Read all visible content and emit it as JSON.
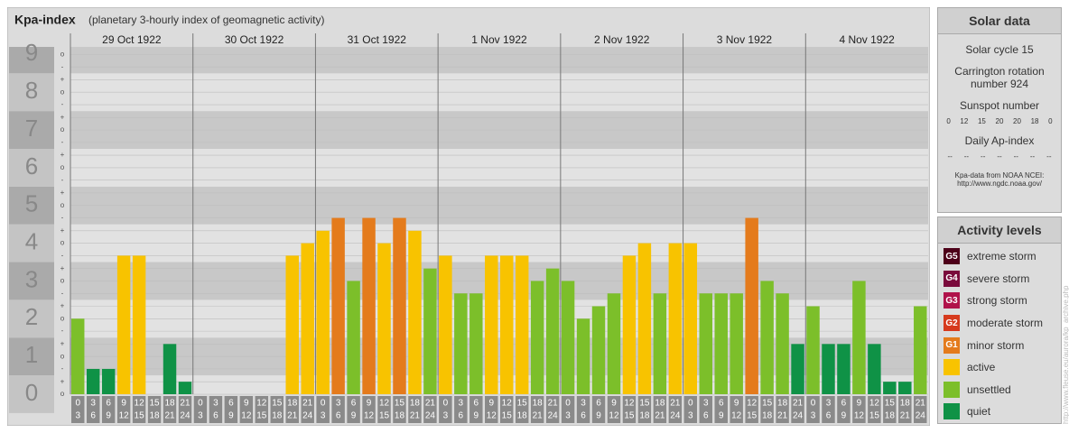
{
  "chart_data": {
    "type": "bar",
    "title": "Kpa-index",
    "subtitle": "(planetary 3-hourly index of geomagnetic activity)",
    "days": [
      "29 Oct 1922",
      "30 Oct 1922",
      "31 Oct 1922",
      "1 Nov 1922",
      "2 Nov 1922",
      "3 Nov 1922",
      "4 Nov 1922"
    ],
    "hours_start": [
      0,
      3,
      6,
      9,
      12,
      15,
      18,
      21
    ],
    "hours_end": [
      3,
      6,
      9,
      12,
      15,
      18,
      21,
      24
    ],
    "values": [
      2,
      0.67,
      0.67,
      3.67,
      3.67,
      0,
      1.33,
      0.33,
      0,
      0,
      0,
      0,
      0,
      0,
      3.67,
      4,
      4.33,
      4.67,
      3,
      4.67,
      4,
      4.67,
      4.33,
      3.33,
      3.67,
      2.67,
      2.67,
      3.67,
      3.67,
      3.67,
      3,
      3.33,
      3,
      2,
      2.33,
      2.67,
      3.67,
      4,
      2.67,
      4,
      4,
      2.67,
      2.67,
      2.67,
      4.67,
      3,
      2.67,
      1.33,
      2.33,
      1.33,
      1.33,
      3,
      1.33,
      0.33,
      0.33,
      2.33
    ],
    "colors": [
      "#7cbf2a",
      "#0f9246",
      "#0f9246",
      "#f8c300",
      "#f8c300",
      "#0f9246",
      "#0f9246",
      "#0f9246",
      "#0f9246",
      "#0f9246",
      "#0f9246",
      "#0f9246",
      "#0f9246",
      "#0f9246",
      "#f8c300",
      "#f8c300",
      "#f8c300",
      "#e47b1c",
      "#7cbf2a",
      "#e47b1c",
      "#f8c300",
      "#e47b1c",
      "#f8c300",
      "#7cbf2a",
      "#f8c300",
      "#7cbf2a",
      "#7cbf2a",
      "#f8c300",
      "#f8c300",
      "#f8c300",
      "#7cbf2a",
      "#7cbf2a",
      "#7cbf2a",
      "#7cbf2a",
      "#7cbf2a",
      "#7cbf2a",
      "#f8c300",
      "#f8c300",
      "#7cbf2a",
      "#f8c300",
      "#f8c300",
      "#7cbf2a",
      "#7cbf2a",
      "#7cbf2a",
      "#e47b1c",
      "#7cbf2a",
      "#7cbf2a",
      "#0f9246",
      "#7cbf2a",
      "#0f9246",
      "#0f9246",
      "#7cbf2a",
      "#0f9246",
      "#0f9246",
      "#0f9246",
      "#7cbf2a"
    ],
    "ylim": [
      0,
      9.2
    ],
    "yticks": [
      0,
      1,
      2,
      3,
      4,
      5,
      6,
      7,
      8,
      9
    ],
    "minor_ticks": [
      {
        "value": 0,
        "label": "o"
      },
      {
        "value": 0.33,
        "label": "+"
      },
      {
        "value": 0.67,
        "label": "-"
      },
      {
        "value": 1,
        "label": "o"
      },
      {
        "value": 1.33,
        "label": "+"
      },
      {
        "value": 1.67,
        "label": "-"
      },
      {
        "value": 2,
        "label": "o"
      },
      {
        "value": 2.33,
        "label": "+"
      },
      {
        "value": 2.67,
        "label": "-"
      },
      {
        "value": 3,
        "label": "o"
      },
      {
        "value": 3.33,
        "label": "+"
      },
      {
        "value": 3.67,
        "label": "-"
      },
      {
        "value": 4,
        "label": "o"
      },
      {
        "value": 4.33,
        "label": "+"
      },
      {
        "value": 4.67,
        "label": "-"
      },
      {
        "value": 5,
        "label": "o"
      },
      {
        "value": 5.33,
        "label": "+"
      },
      {
        "value": 5.67,
        "label": "-"
      },
      {
        "value": 6,
        "label": "o"
      },
      {
        "value": 6.33,
        "label": "+"
      },
      {
        "value": 6.67,
        "label": "-"
      },
      {
        "value": 7,
        "label": "o"
      },
      {
        "value": 7.33,
        "label": "+"
      },
      {
        "value": 7.67,
        "label": "-"
      },
      {
        "value": 8,
        "label": "o"
      },
      {
        "value": 8.33,
        "label": "+"
      },
      {
        "value": 8.67,
        "label": "-"
      },
      {
        "value": 9,
        "label": "o"
      }
    ],
    "grid": true
  },
  "solar_data": {
    "title": "Solar data",
    "cycle": "Solar cycle 15",
    "carrington": "Carrington rotation number 924",
    "sunspot_label": "Sunspot number",
    "sunspots": [
      0,
      12,
      15,
      20,
      20,
      18,
      0
    ],
    "ap_label": "Daily Ap-index",
    "ap": [
      "--",
      "--",
      "--",
      "--",
      "--",
      "--",
      "--"
    ],
    "source": "Kpa-data from NOAA NCEI:",
    "source_url": "http://www.ngdc.noaa.gov/"
  },
  "activity_levels": {
    "title": "Activity levels",
    "items": [
      {
        "badge": "G5",
        "label": "extreme storm",
        "color": "#4d0019"
      },
      {
        "badge": "G4",
        "label": "severe storm",
        "color": "#7a0a3c"
      },
      {
        "badge": "G3",
        "label": "strong storm",
        "color": "#b0124a"
      },
      {
        "badge": "G2",
        "label": "moderate storm",
        "color": "#d63a1d"
      },
      {
        "badge": "G1",
        "label": "minor storm",
        "color": "#e47b1c"
      },
      {
        "badge": null,
        "label": "active",
        "color": "#f8c300"
      },
      {
        "badge": null,
        "label": "unsettled",
        "color": "#7cbf2a"
      },
      {
        "badge": null,
        "label": "quiet",
        "color": "#0f9246"
      }
    ]
  },
  "watermark": "http://www.fleuse.eu/aurora/kp_archive.php"
}
